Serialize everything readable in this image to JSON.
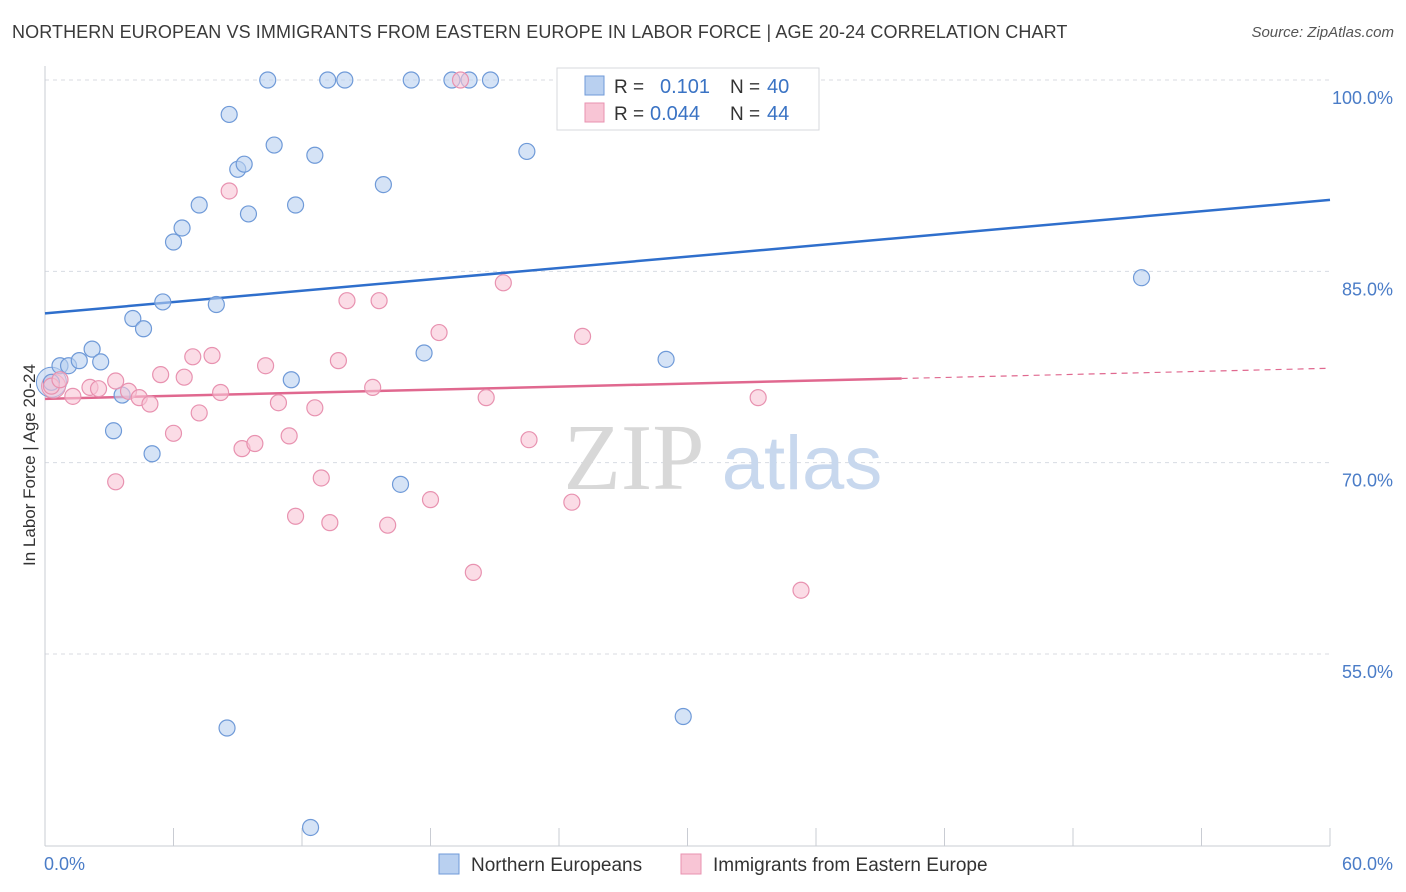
{
  "title": "NORTHERN EUROPEAN VS IMMIGRANTS FROM EASTERN EUROPE IN LABOR FORCE | AGE 20-24 CORRELATION CHART",
  "source": "Source: ZipAtlas.com",
  "colors": {
    "blue_fill": "#b9d0f0",
    "blue_stroke": "#6f9ad8",
    "blue_line": "#2f6fcc",
    "pink_fill": "#f8c5d5",
    "pink_stroke": "#e892b0",
    "pink_line": "#e0688f",
    "grid": "#d8dbe2",
    "axis_text": "#4a7cc7"
  },
  "legend": {
    "rows": [
      {
        "r_label": "R =",
        "r_value": "0.101",
        "n_label": "N =",
        "n_value": "40"
      },
      {
        "r_label": "R =",
        "r_value": "0.044",
        "n_label": "N =",
        "n_value": "44"
      }
    ]
  },
  "watermark": {
    "zip": "ZIP",
    "atlas": "atlas"
  },
  "chart_data": {
    "type": "scatter",
    "title": "NORTHERN EUROPEAN VS IMMIGRANTS FROM EASTERN EUROPE IN LABOR FORCE | AGE 20-24 CORRELATION CHART",
    "xlabel": "",
    "ylabel": "In Labor Force | Age 20-24",
    "xlim": [
      0,
      60
    ],
    "ylim": [
      40,
      102
    ],
    "x_tick_labels": [
      {
        "value": 0,
        "label": "0.0%"
      },
      {
        "value": 60,
        "label": "60.0%"
      }
    ],
    "y_tick_labels": [
      {
        "value": 55,
        "label": "55.0%"
      },
      {
        "value": 70,
        "label": "70.0%"
      },
      {
        "value": 85,
        "label": "85.0%"
      },
      {
        "value": 100,
        "label": "100.0%"
      }
    ],
    "series": [
      {
        "name": "Northern Europeans",
        "color": "blue",
        "trend": {
          "x0": 0,
          "y0": 81.7,
          "x1": 60,
          "y1": 90.6,
          "solid_to": 60
        },
        "points": [
          [
            0.3,
            76.3
          ],
          [
            0.7,
            77.6
          ],
          [
            1.1,
            77.6
          ],
          [
            1.6,
            78.0
          ],
          [
            2.2,
            78.9
          ],
          [
            2.6,
            77.9
          ],
          [
            3.2,
            72.5
          ],
          [
            3.6,
            75.3
          ],
          [
            4.1,
            81.3
          ],
          [
            4.6,
            80.5
          ],
          [
            5.0,
            70.7
          ],
          [
            5.5,
            82.6
          ],
          [
            6.0,
            87.3
          ],
          [
            6.4,
            88.4
          ],
          [
            7.2,
            90.2
          ],
          [
            8.0,
            82.4
          ],
          [
            8.5,
            49.2
          ],
          [
            8.6,
            97.3
          ],
          [
            9.0,
            93.0
          ],
          [
            9.3,
            93.4
          ],
          [
            9.5,
            89.5
          ],
          [
            10.4,
            100.0
          ],
          [
            10.7,
            94.9
          ],
          [
            11.5,
            76.5
          ],
          [
            11.7,
            90.2
          ],
          [
            12.4,
            41.4
          ],
          [
            12.6,
            94.1
          ],
          [
            13.2,
            100.0
          ],
          [
            14.0,
            100.0
          ],
          [
            15.8,
            91.8
          ],
          [
            16.6,
            68.3
          ],
          [
            17.1,
            100.0
          ],
          [
            17.7,
            78.6
          ],
          [
            19.0,
            100.0
          ],
          [
            19.8,
            100.0
          ],
          [
            20.8,
            100.0
          ],
          [
            22.5,
            94.4
          ],
          [
            29.0,
            78.1
          ],
          [
            29.8,
            50.1
          ],
          [
            51.2,
            84.5
          ]
        ]
      },
      {
        "name": "Immigrants from Eastern Europe",
        "color": "pink",
        "trend": {
          "x0": 0,
          "y0": 75.0,
          "x1": 60,
          "y1": 77.4,
          "solid_to": 40
        },
        "points": [
          [
            0.3,
            76.0
          ],
          [
            0.7,
            76.5
          ],
          [
            1.3,
            75.2
          ],
          [
            2.1,
            75.9
          ],
          [
            2.5,
            75.8
          ],
          [
            3.3,
            76.4
          ],
          [
            3.3,
            68.5
          ],
          [
            3.9,
            75.6
          ],
          [
            4.4,
            75.1
          ],
          [
            4.9,
            74.6
          ],
          [
            5.4,
            76.9
          ],
          [
            6.0,
            72.3
          ],
          [
            6.5,
            76.7
          ],
          [
            6.9,
            78.3
          ],
          [
            7.2,
            73.9
          ],
          [
            7.8,
            78.4
          ],
          [
            8.2,
            75.5
          ],
          [
            8.6,
            91.3
          ],
          [
            9.2,
            71.1
          ],
          [
            9.8,
            71.5
          ],
          [
            10.3,
            77.6
          ],
          [
            10.9,
            74.7
          ],
          [
            11.4,
            72.1
          ],
          [
            11.7,
            65.8
          ],
          [
            12.6,
            74.3
          ],
          [
            12.9,
            68.8
          ],
          [
            13.3,
            65.3
          ],
          [
            13.7,
            78.0
          ],
          [
            14.1,
            82.7
          ],
          [
            15.3,
            75.9
          ],
          [
            15.6,
            82.7
          ],
          [
            16.0,
            65.1
          ],
          [
            18.0,
            67.1
          ],
          [
            18.4,
            80.2
          ],
          [
            19.4,
            100.0
          ],
          [
            20.0,
            61.4
          ],
          [
            20.6,
            75.1
          ],
          [
            21.4,
            84.1
          ],
          [
            22.6,
            71.8
          ],
          [
            24.6,
            66.9
          ],
          [
            25.1,
            79.9
          ],
          [
            32.6,
            100.0
          ],
          [
            33.3,
            75.1
          ],
          [
            35.3,
            60.0
          ]
        ]
      }
    ],
    "legend_position": "top-center",
    "grid": true
  },
  "axis": {
    "ylabel": "In Labor Force | Age 20-24",
    "x_min_label": "0.0%",
    "x_max_label": "60.0%"
  },
  "bottom_legend": [
    {
      "label": "Northern Europeans",
      "color": "blue"
    },
    {
      "label": "Immigrants from Eastern Europe",
      "color": "pink"
    }
  ]
}
